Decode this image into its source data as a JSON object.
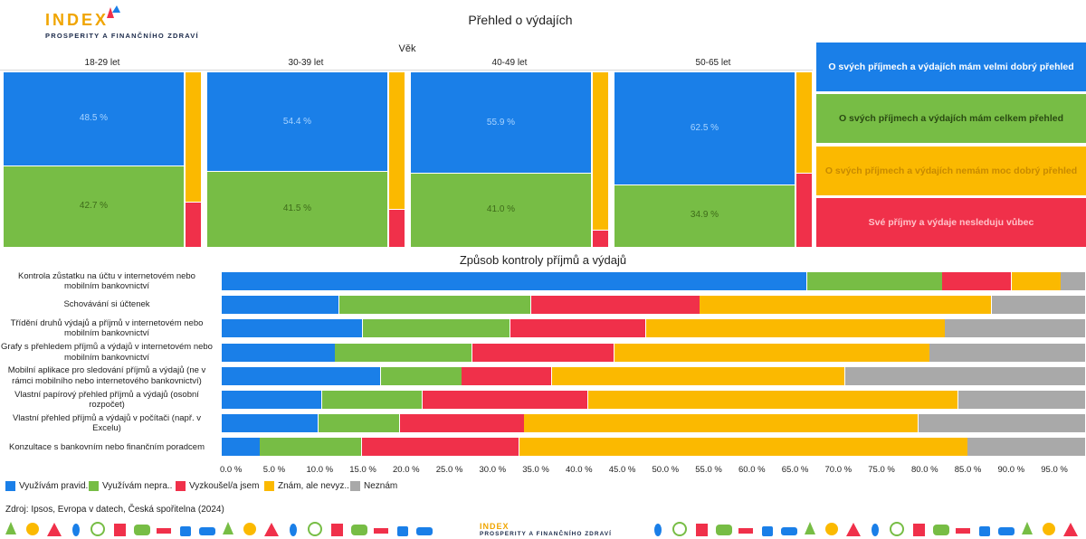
{
  "logo": {
    "word": "INDEX",
    "subtitle": "PROSPERITY A FINANČNÍHO ZDRAVÍ"
  },
  "footer_logo": {
    "word": "INDEX",
    "subtitle": "PROSPERITY A FINANČNÍHO ZDRAVÍ"
  },
  "title": "Přehled o výdajích",
  "colors": {
    "blue": "#1a7fe8",
    "green": "#77bd45",
    "yellow": "#fbb900",
    "red": "#f0304a",
    "gray": "#a9a9a9"
  },
  "chart_data": [
    {
      "type": "bar",
      "subtype": "mosaic",
      "title": "Přehled o výdajích",
      "xlabel": "Věk",
      "categories": [
        "18-29 let",
        "30-39 let",
        "40-49 let",
        "50-65 let"
      ],
      "series": [
        {
          "name": "O svých příjmech a výdajích mám velmi dobrý přehled",
          "values": [
            48.5,
            54.4,
            55.9,
            62.5
          ]
        },
        {
          "name": "O svých příjmech a výdajích mám celkem přehled",
          "values": [
            42.7,
            41.5,
            41.0,
            34.9
          ]
        },
        {
          "name": "O svých příjmech a výdajích nemám moc dobrý přehled",
          "values": [
            6.5,
            3.2,
            2.8,
            1.5
          ]
        },
        {
          "name": "Své příjmy a výdaje nesleduju vůbec",
          "values": [
            2.3,
            0.9,
            0.3,
            1.1
          ]
        }
      ],
      "data_labels": [
        [
          "48.5 %",
          "54.4 %",
          "55.9 %",
          "62.5 %"
        ],
        [
          "42.7 %",
          "41.5 %",
          "41.0 %",
          "34.9 %"
        ]
      ],
      "legend": "right"
    },
    {
      "type": "bar",
      "subtype": "stacked-horizontal-100",
      "title": "Způsob kontroly příjmů a výdajů",
      "categories": [
        "Kontrola zůstatku na účtu v internetovém nebo mobilním bankovnictví",
        "Schovávání si účtenek",
        "Třídění druhů výdajů a příjmů v internetovém nebo mobilním bankovnictví",
        "Grafy s přehledem příjmů a výdajů v internetovém nebo mobilním bankovnictví",
        "Mobilní aplikace pro sledování příjmů a výdajů (ne v rámci mobilního nebo internetového bankovnictví)",
        "Vlastní papírový přehled příjmů a výdajů (osobní rozpočet)",
        "Vlastní přehled příjmů a výdajů v počítači (např. v Excelu)",
        "Konzultace s bankovním nebo finančním poradcem"
      ],
      "series": [
        {
          "name": "Využívám pravid..",
          "values": [
            67.7,
            13.6,
            16.3,
            13.1,
            18.4,
            11.6,
            11.2,
            4.4
          ]
        },
        {
          "name": "Využívám nepra..",
          "values": [
            15.7,
            22.2,
            17.1,
            15.9,
            9.4,
            11.6,
            9.4,
            11.8
          ]
        },
        {
          "name": "Vyzkoušel/a jsem",
          "values": [
            8.0,
            19.5,
            15.7,
            16.4,
            10.4,
            19.2,
            14.4,
            18.2
          ]
        },
        {
          "name": "Znám, ale nevyz..",
          "values": [
            5.7,
            33.8,
            34.6,
            36.5,
            33.9,
            42.8,
            45.6,
            51.9
          ]
        },
        {
          "name": "Neznám",
          "values": [
            2.9,
            10.9,
            16.3,
            18.1,
            27.9,
            14.8,
            19.4,
            13.7
          ]
        }
      ],
      "x_ticks": [
        "0.0 %",
        "5.0 %",
        "10.0 %",
        "15.0 %",
        "20.0 %",
        "25.0 %",
        "30.0 %",
        "35.0 %",
        "40.0 %",
        "45.0 %",
        "50.0 %",
        "55.0 %",
        "60.0 %",
        "65.0 %",
        "70.0 %",
        "75.0 %",
        "80.0 %",
        "85.0 %",
        "90.0 %",
        "95.0 %"
      ],
      "xlim": [
        0,
        100
      ],
      "legend": "bottom"
    }
  ],
  "source": "Zdroj: Ipsos, Evropa v datech, Česká spořitelna (2024)",
  "decor_icons": [
    "tree-icon",
    "sun-icon",
    "mountain-icon",
    "flame-icon",
    "ferris-wheel-icon",
    "house-icon",
    "car-icon",
    "bench-icon",
    "fountain-icon",
    "wave-icon"
  ]
}
